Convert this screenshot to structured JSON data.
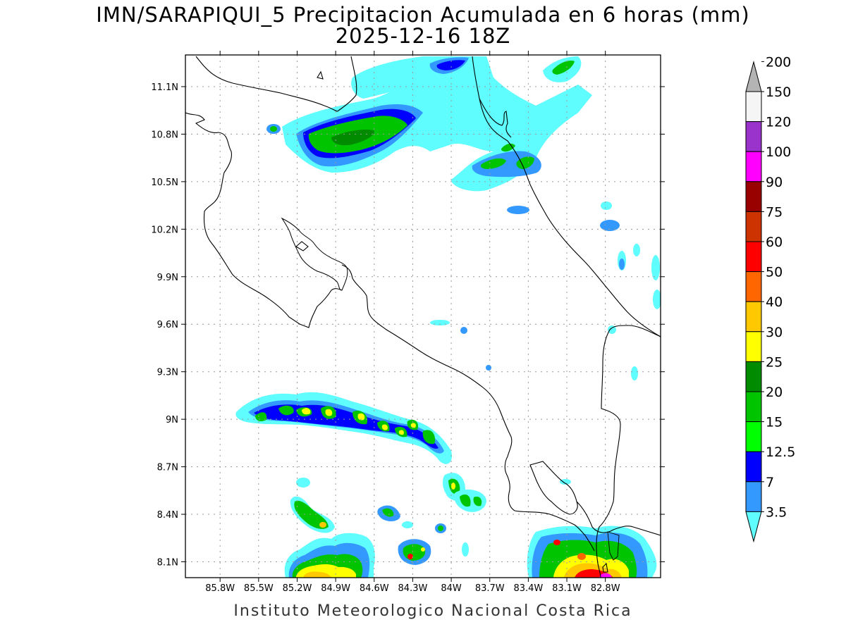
{
  "title": {
    "line1": "IMN/SARAPIQUI_5 Precipitacion Acumulada en 6 horas (mm)",
    "line2": "2025-12-16 18Z"
  },
  "footer": "Instituto Meteorologico Nacional Costa Rica",
  "map": {
    "lon_range": [
      -86.07,
      -82.37
    ],
    "lat_range": [
      8.0,
      11.3
    ],
    "lon_ticks": [
      "85.8W",
      "85.5W",
      "85.2W",
      "84.9W",
      "84.6W",
      "84.3W",
      "84W",
      "83.7W",
      "83.4W",
      "83.1W",
      "82.8W"
    ],
    "lat_ticks": [
      "8.1N",
      "8.4N",
      "8.7N",
      "9N",
      "9.3N",
      "9.6N",
      "9.9N",
      "10.2N",
      "10.5N",
      "10.8N",
      "11.1N"
    ],
    "grid": "dotted"
  },
  "colorbar": {
    "labels": [
      "3.5",
      "7",
      "12.5",
      "15",
      "20",
      "25",
      "30",
      "40",
      "50",
      "60",
      "75",
      "90",
      "100",
      "120",
      "150",
      "200"
    ],
    "colors": [
      "#5ffdfd",
      "#3399ff",
      "#0000ff",
      "#00ff00",
      "#00c400",
      "#008b00",
      "#ffff00",
      "#ffc800",
      "#ff6600",
      "#ff0000",
      "#cc3300",
      "#990000",
      "#ff00ff",
      "#9933cc",
      "#f5f5f5",
      "#b4b4b4"
    ]
  }
}
